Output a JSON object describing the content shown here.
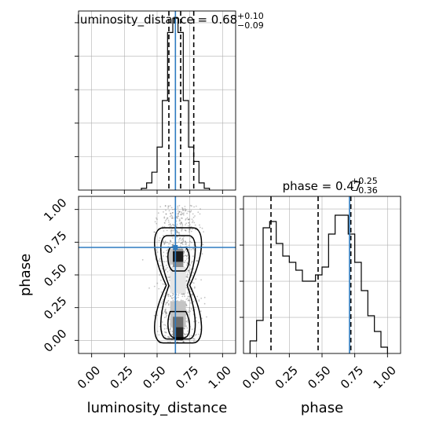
{
  "chart_data": {
    "type": "corner",
    "params": [
      "luminosity_distance",
      "phase"
    ],
    "truth": {
      "luminosity_distance": 0.64,
      "phase": 0.71
    },
    "grid": true,
    "panels": [
      {
        "id": "hist-luminosity-distance",
        "type": "histogram",
        "title": {
          "prefix": "luminosity_distance = 0.68",
          "sup": "+0.10",
          "sub": "−0.09"
        },
        "xlim": [
          -0.1,
          1.1
        ],
        "ylim": [
          0,
          1.0
        ],
        "bins": [
          0.38,
          0.42,
          0.46,
          0.5,
          0.54,
          0.58,
          0.62,
          0.66,
          0.7,
          0.74,
          0.78,
          0.82,
          0.86,
          0.9
        ],
        "heights": [
          0.01,
          0.04,
          0.1,
          0.24,
          0.5,
          0.88,
          0.96,
          0.88,
          0.5,
          0.24,
          0.16,
          0.04,
          0.01
        ],
        "quantiles": [
          0.59,
          0.68,
          0.78
        ],
        "truth": 0.64
      },
      {
        "id": "hist-phase",
        "type": "histogram",
        "title": {
          "prefix": "phase = 0.47",
          "sup": "+0.25",
          "sub": "−0.36"
        },
        "xlim": [
          -0.1,
          1.1
        ],
        "ylim": [
          0,
          1.0
        ],
        "bins": [
          -0.05,
          0.0,
          0.05,
          0.1,
          0.15,
          0.2,
          0.25,
          0.3,
          0.35,
          0.4,
          0.45,
          0.5,
          0.55,
          0.6,
          0.65,
          0.7,
          0.75,
          0.8,
          0.85,
          0.9,
          0.95,
          1.0
        ],
        "heights": [
          0.08,
          0.21,
          0.8,
          0.84,
          0.7,
          0.62,
          0.58,
          0.53,
          0.46,
          0.46,
          0.5,
          0.55,
          0.76,
          0.88,
          0.88,
          0.76,
          0.58,
          0.4,
          0.24,
          0.14,
          0.04
        ],
        "quantiles": [
          0.11,
          0.47,
          0.72
        ],
        "truth": 0.71,
        "xticks": [
          0.0,
          0.25,
          0.5,
          0.75,
          1.0
        ],
        "xticklabels": [
          "0.00",
          "0.25",
          "0.50",
          "0.75",
          "1.00"
        ],
        "xlabel": "phase"
      },
      {
        "id": "scatter-2d",
        "type": "2d-contour",
        "xlim": [
          -0.1,
          1.1
        ],
        "ylim": [
          -0.1,
          1.1
        ],
        "xticks": [
          0.0,
          0.25,
          0.5,
          0.75,
          1.0
        ],
        "xticklabels": [
          "0.00",
          "0.25",
          "0.50",
          "0.75",
          "1.00"
        ],
        "yticks": [
          0.0,
          0.25,
          0.5,
          0.75,
          1.0
        ],
        "yticklabels": [
          "0.00",
          "0.25",
          "0.50",
          "0.75",
          "1.00"
        ],
        "xlabel": "luminosity_distance",
        "ylabel": "phase",
        "truth": [
          0.64,
          0.71
        ]
      }
    ]
  }
}
